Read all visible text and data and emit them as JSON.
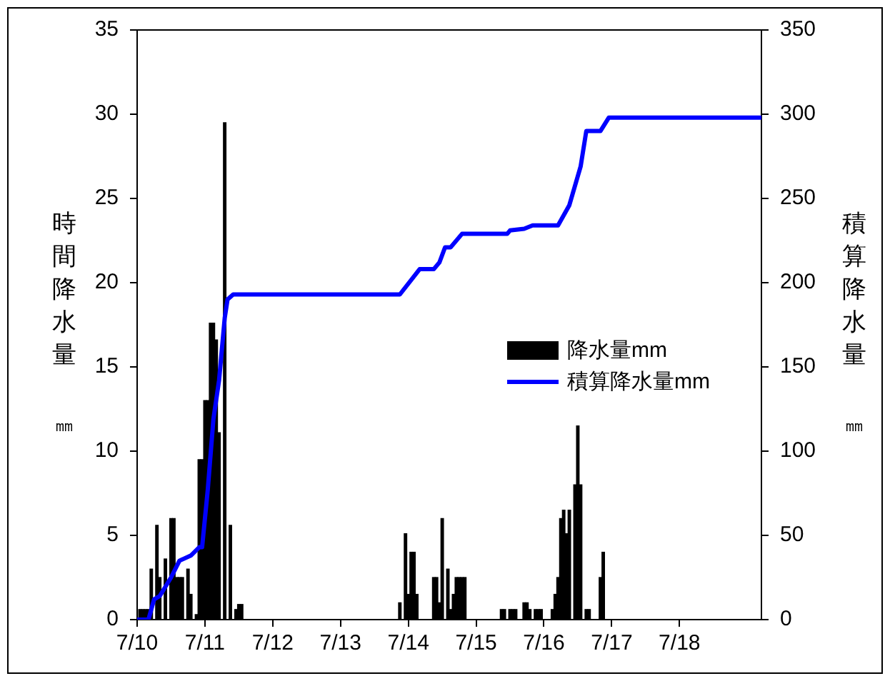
{
  "chart_data": {
    "type": "bar",
    "ylabel": "時間降水量㎜",
    "y2label": "積算降水量㎜",
    "xlim": [
      "--07-10T00:00",
      "--07-19T05:00"
    ],
    "xticks": [
      {
        "value": "--07-10",
        "label": "7/10"
      },
      {
        "value": "--07-11",
        "label": "7/11"
      },
      {
        "value": "--07-12",
        "label": "7/12"
      },
      {
        "value": "--07-13",
        "label": "7/13"
      },
      {
        "value": "--07-14",
        "label": "7/14"
      },
      {
        "value": "--07-15",
        "label": "7/15"
      },
      {
        "value": "--07-16",
        "label": "7/16"
      },
      {
        "value": "--07-17",
        "label": "7/17"
      },
      {
        "value": "--07-18",
        "label": "7/18"
      }
    ],
    "ylim": [
      0,
      35
    ],
    "yticks": [
      0,
      5,
      10,
      15,
      20,
      25,
      30,
      35
    ],
    "y2lim": [
      0,
      350
    ],
    "y2ticks": [
      0,
      50,
      100,
      150,
      200,
      250,
      300,
      350
    ],
    "grid": false,
    "legend": "right",
    "series": [
      {
        "name": "降水量mm",
        "color": "#000000",
        "x": [
          "--07-10T01:00",
          "--07-10T02:00",
          "--07-10T03:00",
          "--07-10T04:00",
          "--07-10T05:00",
          "--07-10T07:00",
          "--07-10T08:00",
          "--07-10T10:00",
          "--07-10T12:00",
          "--07-10T13:00",
          "--07-10T14:00",
          "--07-10T15:00",
          "--07-10T16:00",
          "--07-10T18:00",
          "--07-10T19:00",
          "--07-10T21:00",
          "--07-10T22:00",
          "--07-10T23:00",
          "--07-11T00:00",
          "--07-11T01:00",
          "--07-11T02:00",
          "--07-11T03:00",
          "--07-11T04:00",
          "--07-11T05:00",
          "--07-11T07:00",
          "--07-11T09:00",
          "--07-11T11:00",
          "--07-11T12:00",
          "--07-11T13:00",
          "--07-13T21:00",
          "--07-13T23:00",
          "--07-14T00:00",
          "--07-14T01:00",
          "--07-14T02:00",
          "--07-14T03:00",
          "--07-14T09:00",
          "--07-14T10:00",
          "--07-14T11:00",
          "--07-14T12:00",
          "--07-14T14:00",
          "--07-14T15:00",
          "--07-14T16:00",
          "--07-14T17:00",
          "--07-14T18:00",
          "--07-14T19:00",
          "--07-14T20:00",
          "--07-15T09:00",
          "--07-15T10:00",
          "--07-15T12:00",
          "--07-15T13:00",
          "--07-15T14:00",
          "--07-15T17:00",
          "--07-15T18:00",
          "--07-15T19:00",
          "--07-15T21:00",
          "--07-15T22:00",
          "--07-15T23:00",
          "--07-16T03:00",
          "--07-16T04:00",
          "--07-16T05:00",
          "--07-16T06:00",
          "--07-16T07:00",
          "--07-16T08:00",
          "--07-16T09:00",
          "--07-16T11:00",
          "--07-16T12:00",
          "--07-16T13:00",
          "--07-16T15:00",
          "--07-16T16:00",
          "--07-16T20:00",
          "--07-16T21:00"
        ],
        "values": [
          0.6,
          0.6,
          0.6,
          0.6,
          3.0,
          5.6,
          2.5,
          3.6,
          6.0,
          6.0,
          2.5,
          2.5,
          2.5,
          3.0,
          1.5,
          0.3,
          9.5,
          9.5,
          13.0,
          13.0,
          17.6,
          17.6,
          16.6,
          11.1,
          29.5,
          5.6,
          0.6,
          0.9,
          0.9,
          1.0,
          5.1,
          1.5,
          4.0,
          4.0,
          1.5,
          2.5,
          2.5,
          1.0,
          6.0,
          3.0,
          0.6,
          1.5,
          2.5,
          2.5,
          2.5,
          2.5,
          0.6,
          0.6,
          0.6,
          0.6,
          0.6,
          1.0,
          1.0,
          0.6,
          0.6,
          0.6,
          0.6,
          0.6,
          1.5,
          2.5,
          6.0,
          6.5,
          5.1,
          6.5,
          8.0,
          11.5,
          8.0,
          0.6,
          0.6,
          2.5,
          4.0
        ]
      },
      {
        "name": "積算降水量mm",
        "type": "line",
        "axis": "y2",
        "color": "#0000ff",
        "marker": "none",
        "x": [
          "--07-10T00:00",
          "--07-10T04:00",
          "--07-10T06:00",
          "--07-10T08:00",
          "--07-10T12:00",
          "--07-10T15:00",
          "--07-10T19:00",
          "--07-10T22:00",
          "--07-10T23:00",
          "--07-11T01:00",
          "--07-11T03:00",
          "--07-11T05:00",
          "--07-11T07:00",
          "--07-11T08:00",
          "--07-11T10:00",
          "--07-13T21:00",
          "--07-14T04:00",
          "--07-14T09:00",
          "--07-14T11:00",
          "--07-14T13:00",
          "--07-14T15:00",
          "--07-14T19:00",
          "--07-15T11:00",
          "--07-15T12:00",
          "--07-15T17:00",
          "--07-15T20:00",
          "--07-16T05:00",
          "--07-16T09:00",
          "--07-16T13:00",
          "--07-16T15:00",
          "--07-16T20:00",
          "--07-16T23:00",
          "--07-19T05:00"
        ],
        "values": [
          0,
          0,
          12,
          14,
          25,
          35,
          38,
          43,
          43,
          77,
          119,
          142,
          179,
          190,
          193,
          193,
          208,
          208,
          212,
          221,
          221,
          229,
          229,
          231,
          232,
          234,
          234,
          246,
          269,
          290,
          290,
          298,
          298
        ]
      }
    ]
  }
}
